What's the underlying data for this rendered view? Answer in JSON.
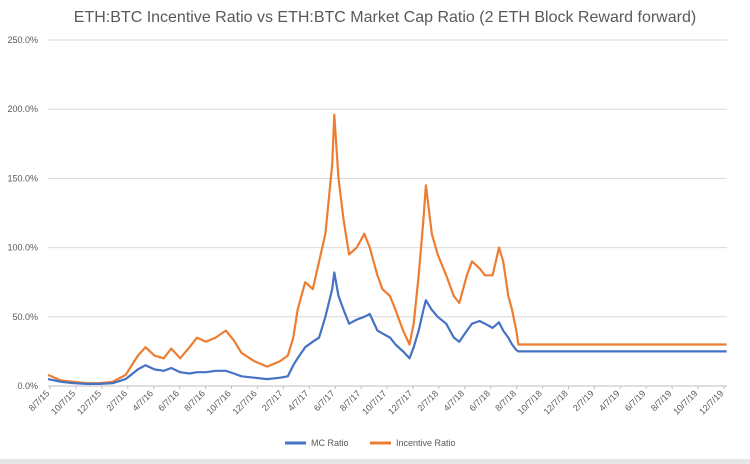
{
  "chart_data": {
    "type": "line",
    "title": "ETH:BTC Incentive Ratio vs ETH:BTC Market Cap Ratio (2 ETH Block Reward forward)",
    "xlabel": "",
    "ylabel": "",
    "ylim": [
      0,
      250
    ],
    "y_ticks": [
      "0.0%",
      "50.0%",
      "100.0%",
      "150.0%",
      "200.0%",
      "250.0%"
    ],
    "x_ticks": [
      "8/7/15",
      "10/7/15",
      "12/7/15",
      "2/7/16",
      "4/7/16",
      "6/7/16",
      "8/7/16",
      "10/7/16",
      "12/7/16",
      "2/7/17",
      "4/7/17",
      "6/7/17",
      "8/7/17",
      "10/7/17",
      "12/7/17",
      "2/7/18",
      "4/7/18",
      "6/7/18",
      "8/7/18",
      "10/7/18",
      "12/7/18",
      "2/7/19",
      "4/7/19",
      "6/7/19",
      "8/7/19",
      "10/7/19",
      "12/7/19"
    ],
    "xlim": [
      "2015-08-07",
      "2020-01-01"
    ],
    "grid": true,
    "legend_position": "bottom",
    "x": [
      "2015-08-07",
      "2015-09-07",
      "2015-10-07",
      "2015-11-07",
      "2015-12-07",
      "2016-01-07",
      "2016-02-07",
      "2016-03-07",
      "2016-03-25",
      "2016-04-15",
      "2016-05-07",
      "2016-05-25",
      "2016-06-15",
      "2016-07-07",
      "2016-07-25",
      "2016-08-15",
      "2016-09-07",
      "2016-10-01",
      "2016-10-20",
      "2016-11-07",
      "2016-12-07",
      "2017-01-07",
      "2017-02-07",
      "2017-02-25",
      "2017-03-10",
      "2017-03-20",
      "2017-04-07",
      "2017-04-25",
      "2017-05-10",
      "2017-05-25",
      "2017-06-10",
      "2017-06-15",
      "2017-06-25",
      "2017-07-07",
      "2017-07-20",
      "2017-08-07",
      "2017-08-25",
      "2017-09-07",
      "2017-09-25",
      "2017-10-07",
      "2017-10-25",
      "2017-11-07",
      "2017-11-25",
      "2017-12-10",
      "2017-12-20",
      "2018-01-01",
      "2018-01-12",
      "2018-01-18",
      "2018-02-01",
      "2018-02-15",
      "2018-03-07",
      "2018-03-25",
      "2018-04-07",
      "2018-04-25",
      "2018-05-07",
      "2018-05-25",
      "2018-06-07",
      "2018-06-25",
      "2018-07-10",
      "2018-07-20",
      "2018-08-01",
      "2018-08-10",
      "2018-08-20",
      "2018-08-25",
      "2019-12-31"
    ],
    "series": [
      {
        "name": "MC Ratio",
        "color": "#4472C4",
        "values": [
          5,
          3,
          2,
          1.5,
          1.5,
          2,
          5,
          12,
          15,
          12,
          11,
          13,
          10,
          9,
          10,
          10,
          11,
          11,
          9,
          7,
          6,
          5,
          6,
          7,
          15,
          20,
          28,
          32,
          35,
          50,
          70,
          82,
          65,
          55,
          45,
          48,
          50,
          52,
          40,
          38,
          35,
          30,
          25,
          20,
          28,
          40,
          55,
          62,
          55,
          50,
          45,
          35,
          32,
          40,
          45,
          47,
          45,
          42,
          46,
          40,
          35,
          30,
          26,
          25,
          25
        ]
      },
      {
        "name": "Incentive Ratio",
        "color": "#ED7D31",
        "values": [
          8,
          4,
          3,
          2,
          2,
          3,
          8,
          22,
          28,
          22,
          20,
          27,
          20,
          28,
          35,
          32,
          35,
          40,
          33,
          24,
          18,
          14,
          18,
          22,
          35,
          55,
          75,
          70,
          90,
          110,
          160,
          196,
          150,
          120,
          95,
          100,
          110,
          100,
          80,
          70,
          65,
          55,
          40,
          30,
          45,
          80,
          120,
          145,
          110,
          95,
          80,
          65,
          60,
          80,
          90,
          85,
          80,
          80,
          100,
          90,
          65,
          55,
          40,
          30,
          30
        ]
      }
    ]
  }
}
